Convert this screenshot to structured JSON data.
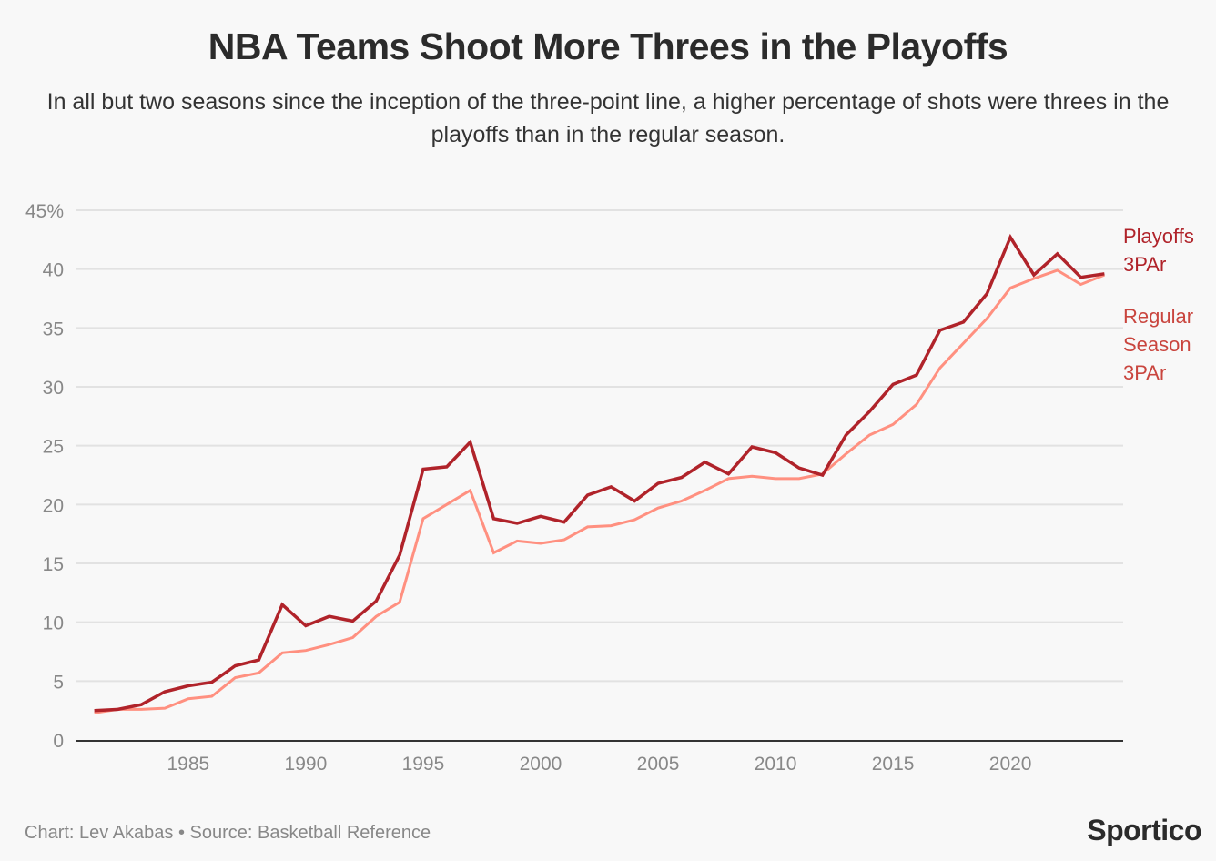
{
  "chart_data": {
    "type": "line",
    "title": "NBA Teams Shoot More Threes in the Playoffs",
    "subtitle": "In all but two seasons since the inception of the three-point line, a higher percentage of shots were threes in the playoffs than in the regular season.",
    "xlabel": "",
    "ylabel": "",
    "ylim": [
      0,
      45
    ],
    "xlim": [
      1980.2,
      2024.8
    ],
    "yticks": [
      0,
      5,
      10,
      15,
      20,
      25,
      30,
      35,
      40,
      45
    ],
    "ytick_labels": [
      "0",
      "5",
      "10",
      "15",
      "20",
      "25",
      "30",
      "35",
      "40",
      "45%"
    ],
    "xticks": [
      1985,
      1990,
      1995,
      2000,
      2005,
      2010,
      2015,
      2020
    ],
    "xtick_labels": [
      "1985",
      "1990",
      "1995",
      "2000",
      "2005",
      "2010",
      "2015",
      "2020"
    ],
    "grid": true,
    "x": [
      1981,
      1982,
      1983,
      1984,
      1985,
      1986,
      1987,
      1988,
      1989,
      1990,
      1991,
      1992,
      1993,
      1994,
      1995,
      1996,
      1997,
      1998,
      1999,
      2000,
      2001,
      2002,
      2003,
      2004,
      2005,
      2006,
      2007,
      2008,
      2009,
      2010,
      2011,
      2012,
      2013,
      2014,
      2015,
      2016,
      2017,
      2018,
      2019,
      2020,
      2021,
      2022,
      2023,
      2024
    ],
    "series": [
      {
        "name": "Playoffs 3PAr",
        "label_lines": [
          "Playoffs",
          "3PAr"
        ],
        "color": "#b0232a",
        "values": [
          2.5,
          2.6,
          3.0,
          4.1,
          4.6,
          4.9,
          6.3,
          6.8,
          11.5,
          9.7,
          10.5,
          10.1,
          11.8,
          15.7,
          23.0,
          23.2,
          25.3,
          18.8,
          18.4,
          19.0,
          18.5,
          20.8,
          21.5,
          20.3,
          21.8,
          22.3,
          23.6,
          22.6,
          24.9,
          24.4,
          23.1,
          22.5,
          25.9,
          27.9,
          30.2,
          31.0,
          34.8,
          35.5,
          37.9,
          42.7,
          39.5,
          41.3,
          39.3,
          39.6
        ]
      },
      {
        "name": "Regular Season 3PAr",
        "label_lines": [
          "Regular",
          "Season",
          "3PAr"
        ],
        "color": "#ff9080",
        "label_color": "#c9453e",
        "values": [
          2.3,
          2.6,
          2.6,
          2.7,
          3.5,
          3.7,
          5.3,
          5.7,
          7.4,
          7.6,
          8.1,
          8.7,
          10.5,
          11.7,
          18.8,
          20.0,
          21.2,
          15.9,
          16.9,
          16.7,
          17.0,
          18.1,
          18.2,
          18.7,
          19.7,
          20.3,
          21.2,
          22.2,
          22.4,
          22.2,
          22.2,
          22.6,
          24.3,
          25.9,
          26.8,
          28.5,
          31.6,
          33.7,
          35.8,
          38.4,
          39.2,
          39.9,
          38.7,
          39.5
        ]
      }
    ]
  },
  "footer": "Chart: Lev Akabas • Source: Basketball Reference",
  "logo": "Sportico"
}
